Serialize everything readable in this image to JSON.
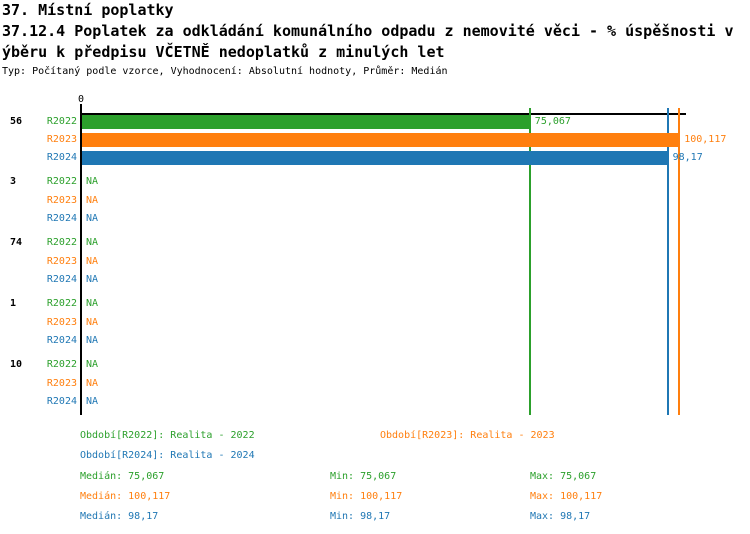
{
  "title": {
    "line1": "37. Místní poplatky",
    "line2": "37.12.4 Poplatek za odkládání komunálního odpadu z nemovité věci - % úspěšnosti v",
    "line3": "ýběru k předpisu VČETNĚ nedoplatků z minulých let",
    "subtitle": "Typ: Počítaný podle vzorce, Vyhodnocení: Absolutní hodnoty, Průměr: Medián"
  },
  "chart_data": {
    "type": "bar",
    "orientation": "horizontal",
    "title": "37.12.4 Poplatek za odkládání komunálního odpadu z nemovité věci - % úspěšnosti ve výběru k předpisu VČETNĚ nedoplatků z minulých let",
    "x_axis": {
      "tick_labels": [
        "0"
      ],
      "xlim": [
        0,
        101.4
      ],
      "grid": false
    },
    "series": [
      "R2022",
      "R2023",
      "R2024"
    ],
    "series_colors": {
      "R2022": "#2CA02C",
      "R2023": "#FF7F0E",
      "R2024": "#1F77B4"
    },
    "groups": [
      {
        "label": "56",
        "bars": [
          {
            "series": "R2022",
            "value": 75.067,
            "value_label": "75,067"
          },
          {
            "series": "R2023",
            "value": 100.117,
            "value_label": "100,117"
          },
          {
            "series": "R2024",
            "value": 98.17,
            "value_label": "98,17"
          }
        ]
      },
      {
        "label": "3",
        "bars": [
          {
            "series": "R2022",
            "value": null,
            "value_label": "NA"
          },
          {
            "series": "R2023",
            "value": null,
            "value_label": "NA"
          },
          {
            "series": "R2024",
            "value": null,
            "value_label": "NA"
          }
        ]
      },
      {
        "label": "74",
        "bars": [
          {
            "series": "R2022",
            "value": null,
            "value_label": "NA"
          },
          {
            "series": "R2023",
            "value": null,
            "value_label": "NA"
          },
          {
            "series": "R2024",
            "value": null,
            "value_label": "NA"
          }
        ]
      },
      {
        "label": "1",
        "bars": [
          {
            "series": "R2022",
            "value": null,
            "value_label": "NA"
          },
          {
            "series": "R2023",
            "value": null,
            "value_label": "NA"
          },
          {
            "series": "R2024",
            "value": null,
            "value_label": "NA"
          }
        ]
      },
      {
        "label": "10",
        "bars": [
          {
            "series": "R2022",
            "value": null,
            "value_label": "NA"
          },
          {
            "series": "R2023",
            "value": null,
            "value_label": "NA"
          },
          {
            "series": "R2024",
            "value": null,
            "value_label": "NA"
          }
        ]
      }
    ],
    "reference_lines": [
      {
        "series": "R2022",
        "value": 75.067
      },
      {
        "series": "R2024",
        "value": 98.17
      },
      {
        "series": "R2023",
        "value": 100.117
      }
    ]
  },
  "legend": {
    "periods": [
      {
        "series": "R2022",
        "label": "Období[R2022]: Realita - 2022"
      },
      {
        "series": "R2023",
        "label": "Období[R2023]: Realita - 2023"
      },
      {
        "series": "R2024",
        "label": "Období[R2024]: Realita - 2024"
      }
    ],
    "stats": [
      {
        "series": "R2022",
        "median": "Medián: 75,067",
        "min": "Min: 75,067",
        "max": "Max: 75,067"
      },
      {
        "series": "R2023",
        "median": "Medián: 100,117",
        "min": "Min: 100,117",
        "max": "Max: 100,117"
      },
      {
        "series": "R2024",
        "median": "Medián: 98,17",
        "min": "Min: 98,17",
        "max": "Max: 98,17"
      }
    ]
  }
}
